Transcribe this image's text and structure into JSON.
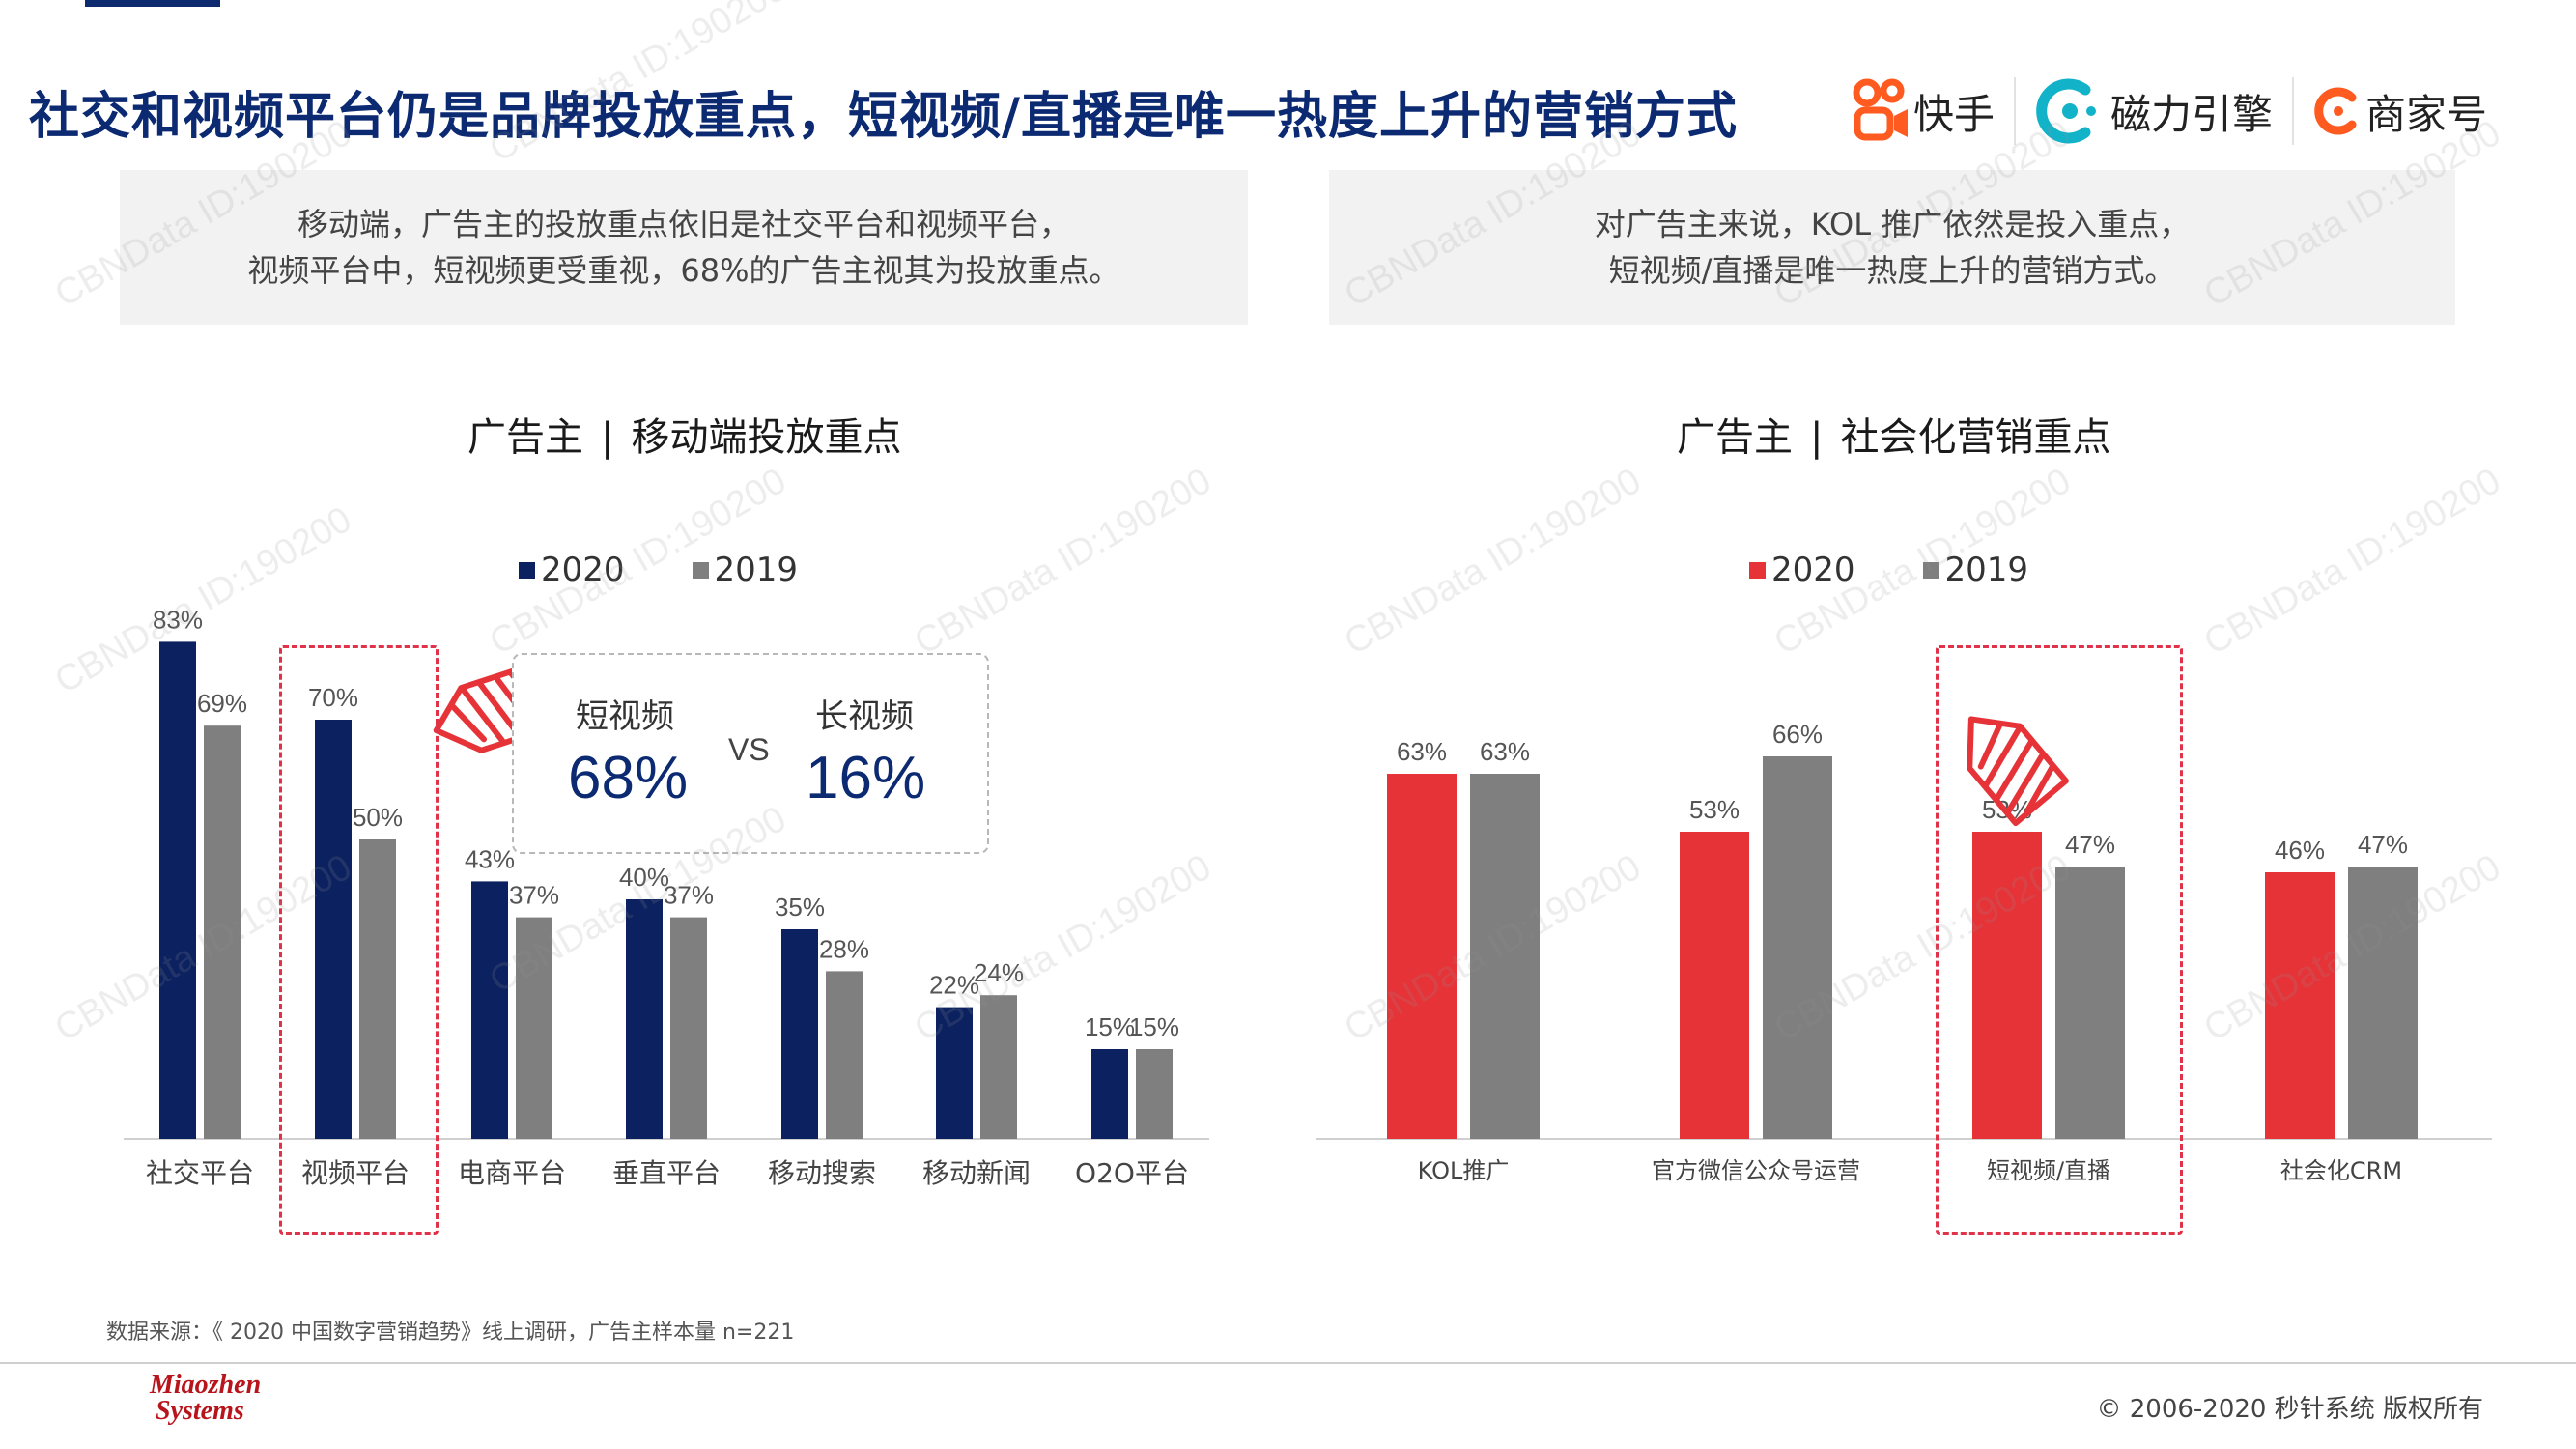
{
  "page": {
    "title": "社交和视频平台仍是品牌投放重点，短视频/直播是唯一热度上升的营销方式",
    "logos": [
      "快手",
      "磁力引擎",
      "商家号"
    ],
    "summary_left": [
      "移动端，广告主的投放重点依旧是社交平台和视频平台，",
      "视频平台中，短视频更受重视，68%的广告主视其为投放重点。"
    ],
    "summary_right": [
      "对广告主来说，KOL 推广依然是投入重点，",
      "短视频/直播是唯一热度上升的营销方式。"
    ],
    "watermark": "CBNData ID:190200",
    "source": "数据来源：《 2020 中国数字营销趋势》线上调研，广告主样本量 n=221",
    "brand_line1": "Miaozhen",
    "brand_line2": "Systems",
    "copyright": "© 2006-2020 秒针系统 版权所有",
    "colors": {
      "navy": "#0c2160",
      "red": "#e63338",
      "gray": "#7f7f7f",
      "title_blue": "#0c2a72"
    }
  },
  "chart_data": [
    {
      "type": "bar",
      "title_left": "广告主",
      "title_sep": "|",
      "title_right": "移动端投放重点",
      "categories": [
        "社交平台",
        "视频平台",
        "电商平台",
        "垂直平台",
        "移动搜索",
        "移动新闻",
        "O2O平台"
      ],
      "series": [
        {
          "name": "2020",
          "values": [
            83,
            70,
            43,
            40,
            35,
            22,
            15
          ],
          "labels": [
            "83%",
            "70%",
            "43%",
            "40%",
            "35%",
            "22%",
            "15%"
          ],
          "color": "#0c2160"
        },
        {
          "name": "2019",
          "values": [
            69,
            50,
            37,
            37,
            28,
            24,
            15
          ],
          "labels": [
            "69%",
            "50%",
            "37%",
            "37%",
            "28%",
            "24%",
            "15%"
          ],
          "color": "#7f7f7f"
        }
      ],
      "highlight_category": "视频平台",
      "callout": {
        "left_label": "短视频",
        "left_value": "68%",
        "vs": "VS",
        "right_label": "长视频",
        "right_value": "16%"
      }
    },
    {
      "type": "bar",
      "title_left": "广告主",
      "title_sep": "|",
      "title_right": "社会化营销重点",
      "categories": [
        "KOL推广",
        "官方微信公众号运营",
        "短视频/直播",
        "社会化CRM"
      ],
      "series": [
        {
          "name": "2020",
          "values": [
            63,
            53,
            53,
            46
          ],
          "labels": [
            "63%",
            "53%",
            "53%",
            "46%"
          ],
          "color": "#e63338"
        },
        {
          "name": "2019",
          "values": [
            63,
            66,
            47,
            47
          ],
          "labels": [
            "63%",
            "66%",
            "47%",
            "47%"
          ],
          "color": "#7f7f7f"
        }
      ],
      "highlight_category": "短视频/直播"
    }
  ]
}
